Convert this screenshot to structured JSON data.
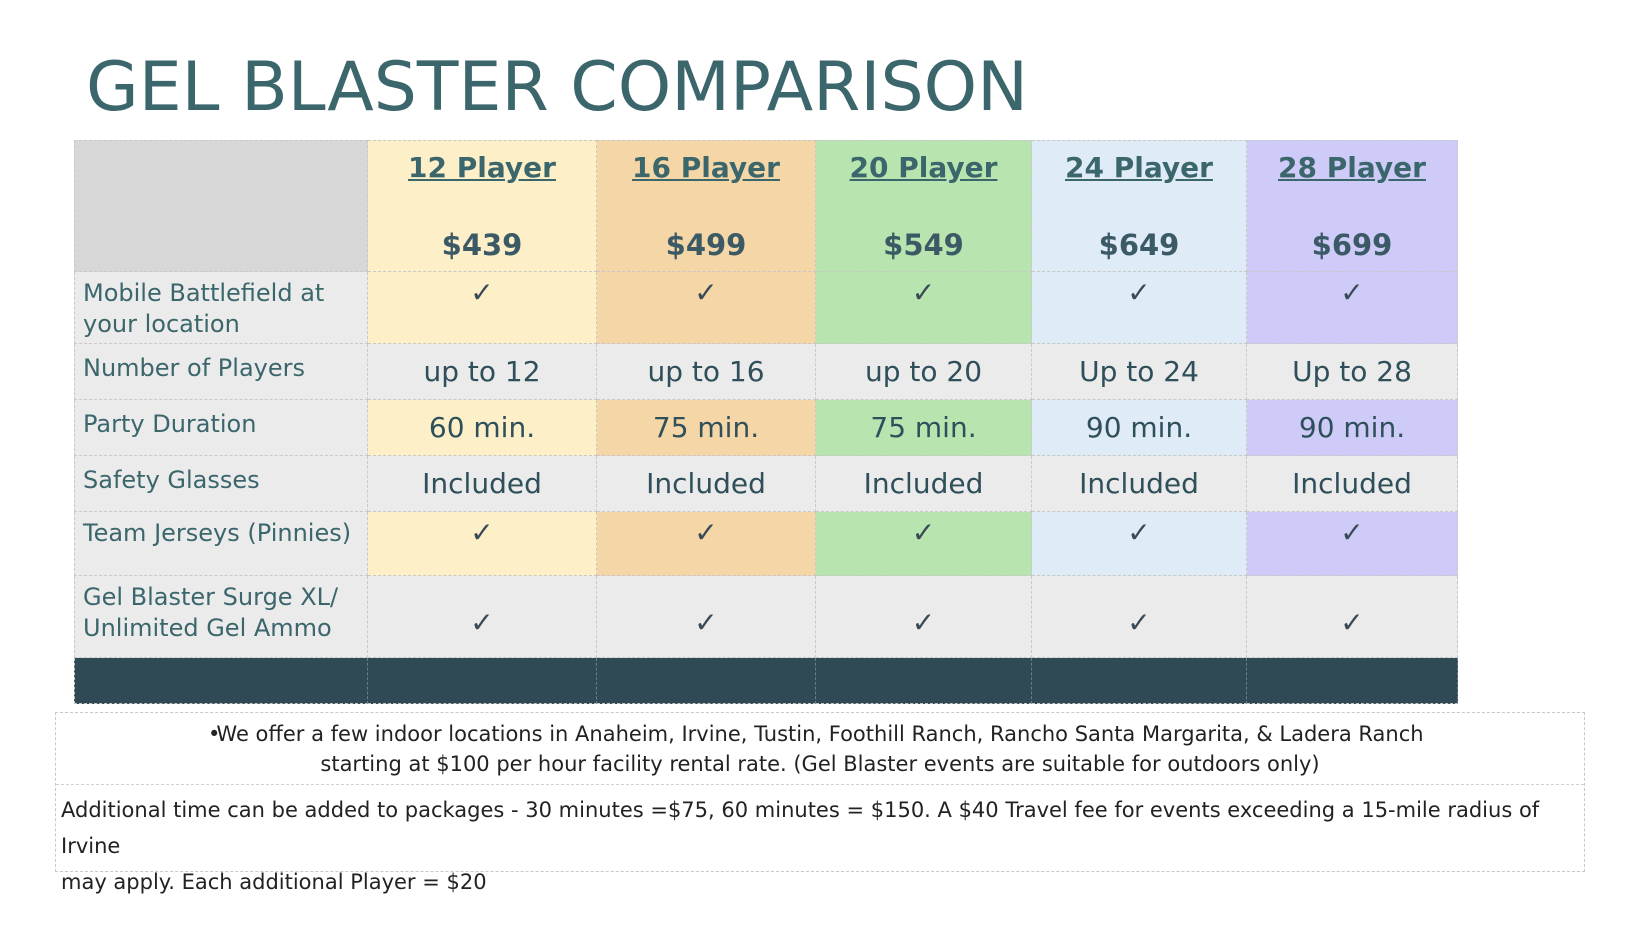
{
  "title": "GEL BLASTER COMPARISON",
  "packages": [
    {
      "name": "12 Player",
      "price": "$439",
      "players": "up to 12",
      "duration": "60 min.",
      "glasses": "Included"
    },
    {
      "name": "16 Player",
      "price": "$499",
      "players": "up to 16",
      "duration": "75 min.",
      "glasses": "Included"
    },
    {
      "name": "20 Player",
      "price": "$549",
      "players": "up to 20",
      "duration": "75 min.",
      "glasses": "Included"
    },
    {
      "name": "24 Player",
      "price": "$649",
      "players": "Up to 24",
      "duration": "90 min.",
      "glasses": "Included"
    },
    {
      "name": "28 Player",
      "price": "$699",
      "players": "Up to 28",
      "duration": "90 min.",
      "glasses": "Included"
    }
  ],
  "rows": {
    "mobile": "Mobile Battlefield at your location",
    "players": "Number of Players",
    "duration": "Party Duration",
    "glasses": "Safety Glasses",
    "jerseys": "Team Jerseys (Pinnies)",
    "blaster": "Gel Blaster Surge XL/ Unlimited Gel Ammo"
  },
  "check_mark": "✓",
  "colors": {
    "c1": "#fdf0c9",
    "c2": "#f5d6a6",
    "c3": "#b8e5af",
    "c4": "#dfebf7",
    "c5": "#cfcbf9",
    "footer_bar": "#2f4a55",
    "title": "#3b666c"
  },
  "notes": {
    "bullet_symbol": "•",
    "bullet_line1": "We offer a few indoor locations in Anaheim, Irvine, Tustin, Foothill Ranch, Rancho Santa Margarita, &  Ladera Ranch",
    "bullet_line2": "starting at $100 per hour facility rental rate.  (Gel Blaster events are suitable for outdoors only)",
    "additional_line1": "Additional time can be added to packages -  30 minutes =$75, 60 minutes = $150.   A $40 Travel fee for events exceeding a 15-mile radius of Irvine",
    "additional_line2": "may apply. Each additional Player = $20"
  }
}
